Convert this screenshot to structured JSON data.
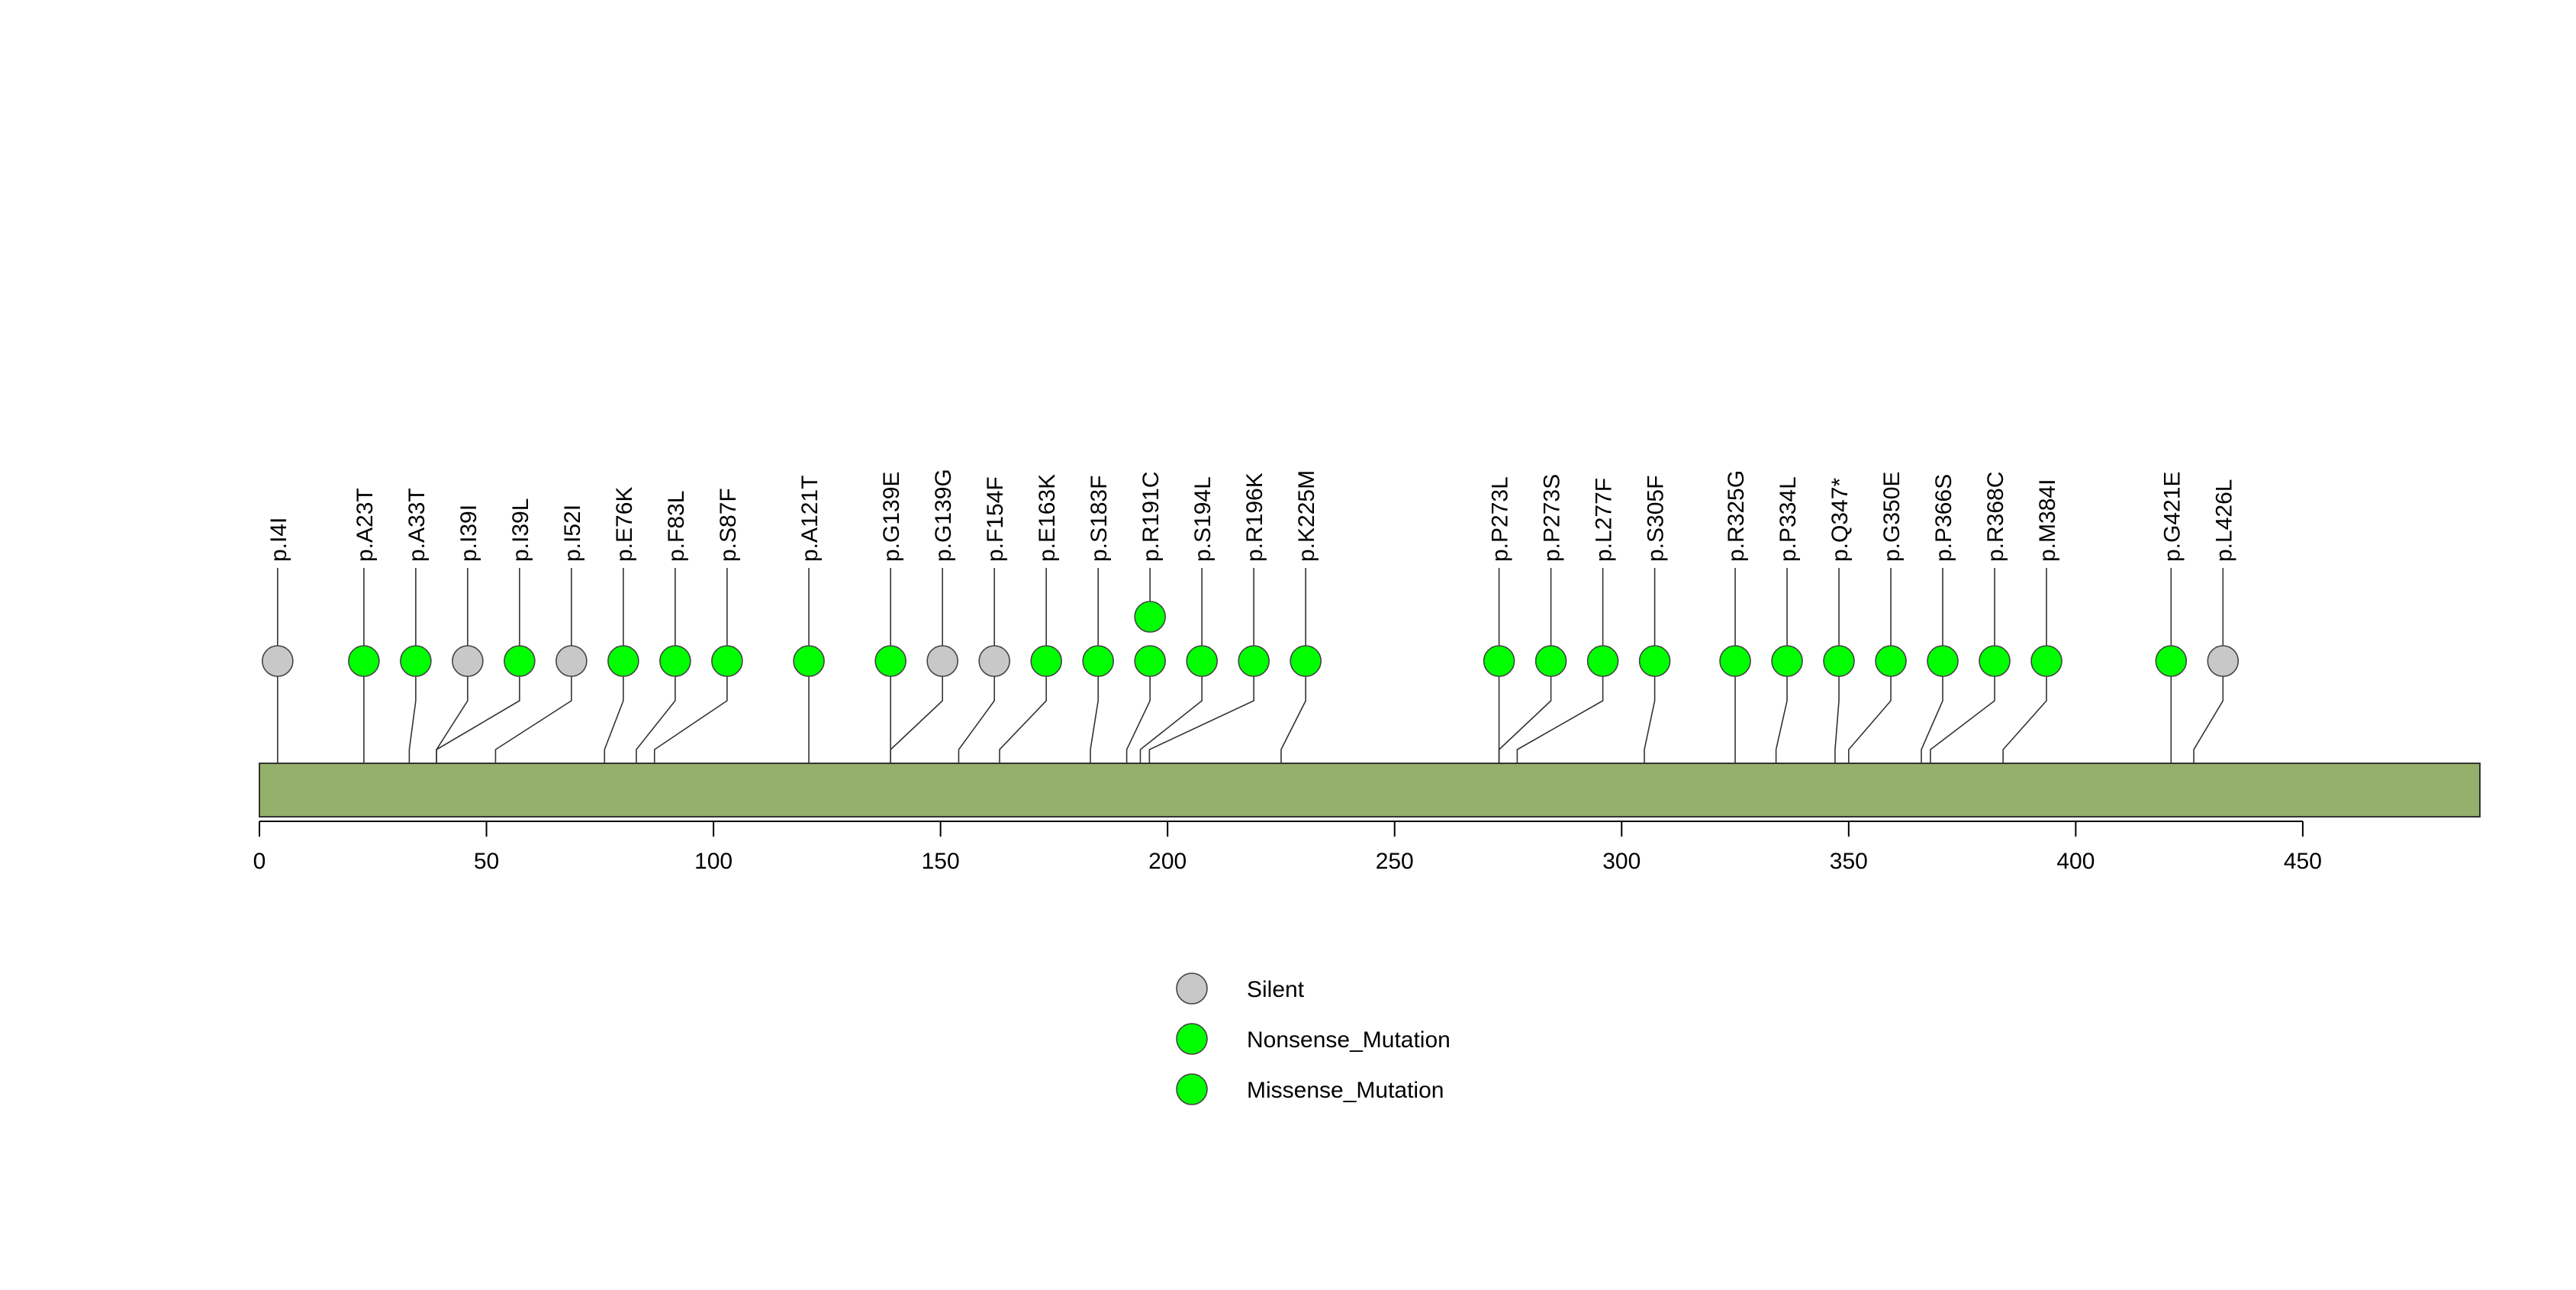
{
  "chart_data": {
    "type": "lollipop",
    "protein_length": 489,
    "xlim": [
      0,
      489
    ],
    "x_ticks": [
      0,
      50,
      100,
      150,
      200,
      250,
      300,
      350,
      400,
      450
    ],
    "colors": {
      "Silent": "#c8c8c8",
      "Nonsense_Mutation": "#00ff00",
      "Missense_Mutation": "#00ff00",
      "domain_bar": "#94b06a"
    },
    "legend": {
      "placement": "bottom-center",
      "items": [
        {
          "label": "Silent",
          "class": "Silent"
        },
        {
          "label": "Nonsense_Mutation",
          "class": "Nonsense_Mutation"
        },
        {
          "label": "Missense_Mutation",
          "class": "Missense_Mutation"
        }
      ]
    },
    "mutations": [
      {
        "label": "p.I4I",
        "position": 4,
        "count": 1,
        "class": "Silent"
      },
      {
        "label": "p.A23T",
        "position": 23,
        "count": 1,
        "class": "Missense_Mutation"
      },
      {
        "label": "p.A33T",
        "position": 33,
        "count": 1,
        "class": "Missense_Mutation"
      },
      {
        "label": "p.I39I",
        "position": 39,
        "count": 1,
        "class": "Silent"
      },
      {
        "label": "p.I39L",
        "position": 39,
        "count": 1,
        "class": "Missense_Mutation"
      },
      {
        "label": "p.I52I",
        "position": 52,
        "count": 1,
        "class": "Silent"
      },
      {
        "label": "p.E76K",
        "position": 76,
        "count": 1,
        "class": "Missense_Mutation"
      },
      {
        "label": "p.F83L",
        "position": 83,
        "count": 1,
        "class": "Missense_Mutation"
      },
      {
        "label": "p.S87F",
        "position": 87,
        "count": 1,
        "class": "Missense_Mutation"
      },
      {
        "label": "p.A121T",
        "position": 121,
        "count": 1,
        "class": "Missense_Mutation"
      },
      {
        "label": "p.G139E",
        "position": 139,
        "count": 1,
        "class": "Missense_Mutation"
      },
      {
        "label": "p.G139G",
        "position": 139,
        "count": 1,
        "class": "Silent"
      },
      {
        "label": "p.F154F",
        "position": 154,
        "count": 1,
        "class": "Silent"
      },
      {
        "label": "p.E163K",
        "position": 163,
        "count": 1,
        "class": "Missense_Mutation"
      },
      {
        "label": "p.S183F",
        "position": 183,
        "count": 1,
        "class": "Missense_Mutation"
      },
      {
        "label": "p.R191C",
        "position": 191,
        "count": 2,
        "class": "Missense_Mutation"
      },
      {
        "label": "p.S194L",
        "position": 194,
        "count": 1,
        "class": "Missense_Mutation"
      },
      {
        "label": "p.R196K",
        "position": 196,
        "count": 1,
        "class": "Missense_Mutation"
      },
      {
        "label": "p.K225M",
        "position": 225,
        "count": 1,
        "class": "Missense_Mutation"
      },
      {
        "label": "p.P273L",
        "position": 273,
        "count": 1,
        "class": "Missense_Mutation"
      },
      {
        "label": "p.P273S",
        "position": 273,
        "count": 1,
        "class": "Missense_Mutation"
      },
      {
        "label": "p.L277F",
        "position": 277,
        "count": 1,
        "class": "Missense_Mutation"
      },
      {
        "label": "p.S305F",
        "position": 305,
        "count": 1,
        "class": "Missense_Mutation"
      },
      {
        "label": "p.R325G",
        "position": 325,
        "count": 1,
        "class": "Missense_Mutation"
      },
      {
        "label": "p.P334L",
        "position": 334,
        "count": 1,
        "class": "Missense_Mutation"
      },
      {
        "label": "p.Q347*",
        "position": 347,
        "count": 1,
        "class": "Nonsense_Mutation"
      },
      {
        "label": "p.G350E",
        "position": 350,
        "count": 1,
        "class": "Missense_Mutation"
      },
      {
        "label": "p.P366S",
        "position": 366,
        "count": 1,
        "class": "Missense_Mutation"
      },
      {
        "label": "p.R368C",
        "position": 368,
        "count": 1,
        "class": "Missense_Mutation"
      },
      {
        "label": "p.M384I",
        "position": 384,
        "count": 1,
        "class": "Missense_Mutation"
      },
      {
        "label": "p.G421E",
        "position": 421,
        "count": 1,
        "class": "Missense_Mutation"
      },
      {
        "label": "p.L426L",
        "position": 426,
        "count": 1,
        "class": "Silent"
      }
    ]
  }
}
